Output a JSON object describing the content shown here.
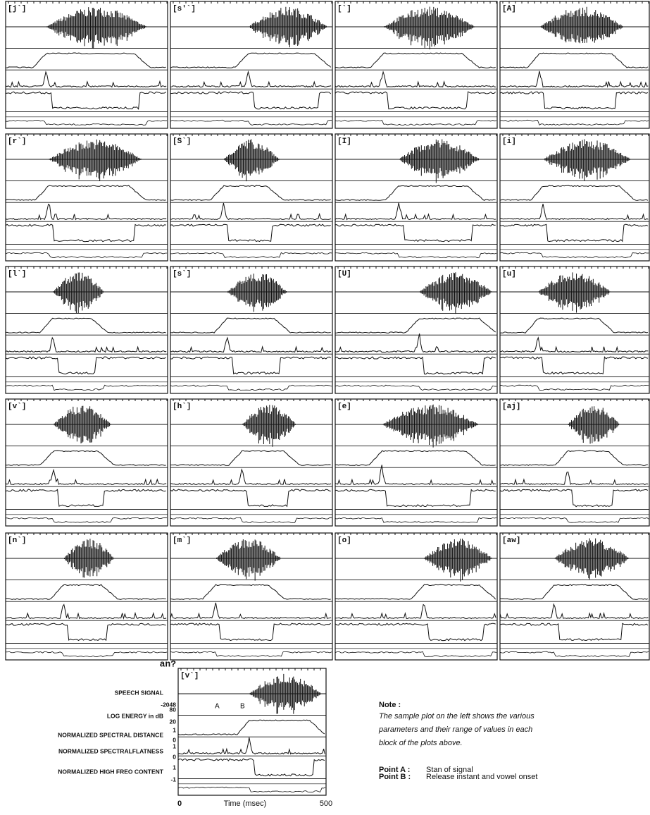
{
  "panels": [
    {
      "label": "[j`]"
    },
    {
      "label": "[s'`]"
    },
    {
      "label": "[`]"
    },
    {
      "label": "[A]"
    },
    {
      "label": "[r`]"
    },
    {
      "label": "[S`]"
    },
    {
      "label": "[I]"
    },
    {
      "label": "[i]"
    },
    {
      "label": "[l`]"
    },
    {
      "label": "[s`]"
    },
    {
      "label": "[U]"
    },
    {
      "label": "[u]"
    },
    {
      "label": "[v`]"
    },
    {
      "label": "[h`]"
    },
    {
      "label": "[e]"
    },
    {
      "label": "[aj]"
    },
    {
      "label": "[n`]"
    },
    {
      "label": "[m`]"
    },
    {
      "label": "[o]"
    },
    {
      "label": "[aw]"
    }
  ],
  "sample": {
    "prefix": "an?",
    "label": "[v`]",
    "point_a": "A",
    "point_b": "B",
    "rows": [
      {
        "label": "SPEECH SIGNAL",
        "ticks": [
          "-2048"
        ]
      },
      {
        "label": "LOG ENERGY in dB",
        "ticks": [
          "80",
          "20"
        ]
      },
      {
        "label": "NORMALIZED SPECTRAL DISTANCE",
        "ticks": [
          "1",
          "0"
        ]
      },
      {
        "label": "NORMALIZED SPECTRALFLATNESS",
        "ticks": [
          "1",
          "0"
        ]
      },
      {
        "label": "NORMALIZED HIGH FREO CONTENT",
        "ticks": [
          "1",
          "-1"
        ]
      }
    ],
    "x_axis": {
      "start": "0",
      "label": "Time (msec)",
      "end": "500"
    }
  },
  "note": {
    "title": "Note :",
    "lines": [
      "The sample plot on the left shows the various",
      "parameters and their range of values in each",
      "block of the plots above."
    ],
    "points": [
      {
        "name": "Point A :",
        "desc": "Stan of signal"
      },
      {
        "name": "Point B :",
        "desc": "Release instant and vowel onset"
      }
    ]
  }
}
